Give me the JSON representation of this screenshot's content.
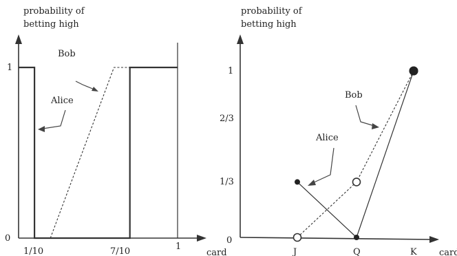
{
  "chart_data": [
    {
      "type": "line",
      "ylabel": "probability of\nbetting high",
      "xlabel": "card",
      "x_ticks": [
        "1/10",
        "7/10",
        "1"
      ],
      "y_ticks": [
        "0",
        "1"
      ],
      "xlim": [
        0,
        1
      ],
      "ylim": [
        0,
        1
      ],
      "series": [
        {
          "name": "Alice",
          "style": "solid",
          "points": [
            [
              0,
              1
            ],
            [
              0.1,
              1
            ],
            [
              0.1,
              0
            ],
            [
              0.7,
              0
            ],
            [
              0.7,
              1
            ],
            [
              1,
              1
            ]
          ]
        },
        {
          "name": "Bob",
          "style": "dashed",
          "points": [
            [
              0.2,
              0
            ],
            [
              0.6,
              1
            ],
            [
              0.7,
              1
            ]
          ]
        }
      ]
    },
    {
      "type": "line",
      "ylabel": "probability of\nbetting high",
      "xlabel": "card",
      "categories": [
        "J",
        "Q",
        "K"
      ],
      "y_ticks": [
        "0",
        "1/3",
        "2/3",
        "1"
      ],
      "ylim": [
        0,
        1
      ],
      "series": [
        {
          "name": "Alice",
          "style": "solid",
          "marker": "filled",
          "values": [
            0.333,
            0,
            1
          ]
        },
        {
          "name": "Bob",
          "style": "dashed",
          "marker": "open",
          "values": [
            0,
            0.333,
            1
          ]
        }
      ]
    }
  ]
}
